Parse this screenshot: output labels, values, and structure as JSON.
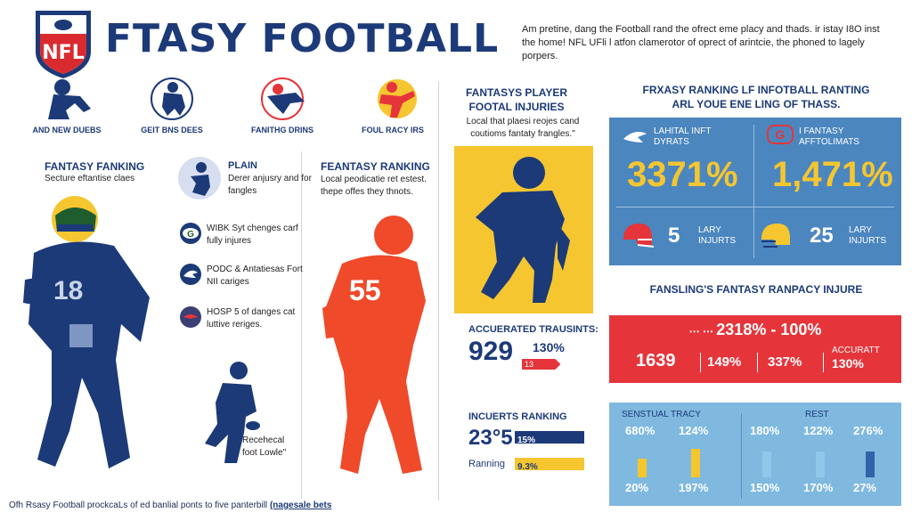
{
  "header": {
    "title": "FTASY FOOTBALL",
    "logo_text": "NFL",
    "intro": "Am pretine, dang the Football rand the ofrect eme placy and thads. ir istay I8O inst the home! NFL UFli l atfon clamerotor of oprect of arintcie, the phoned to lagely porpers."
  },
  "top_icons": [
    {
      "icon": "kneeling-player-icon",
      "label": "AND NEW DUEBS"
    },
    {
      "icon": "crouching-player-icon",
      "label": "GEIT BNS DEES"
    },
    {
      "icon": "diving-player-icon",
      "label": "FANITHG DRINS"
    },
    {
      "icon": "kicking-player-icon",
      "label": "FOUL RACY IRS"
    }
  ],
  "left_section": {
    "title": "FANTASY FANKING",
    "subtitle": "Secture eftantise claes",
    "jersey_number": "18",
    "list": [
      {
        "icon": "player-silhouette-icon",
        "title": "PLAIN",
        "text": "Derer anjusry and for fangles"
      },
      {
        "icon": "team-logo-g-icon",
        "text": "WIBK Syt chenges carf fully injures"
      },
      {
        "icon": "team-logo-eagle-icon",
        "text": "PODC & Antatiesas Fort NII cariges"
      },
      {
        "icon": "team-logo-bird-icon",
        "text": "HOSP 5 of danges cat luttive reriges."
      }
    ],
    "small_caption": "Recehecal foot Lowle\""
  },
  "middle_section": {
    "title": "FEANTASY RANKING",
    "text": "Local peodicatie ret estest. thepe offes they thnots.",
    "jersey_number": "55"
  },
  "player_panel": {
    "title": "FANTASYS PLAYER FOOTAL INJURIES",
    "text": "Local that plaesi reojes cand coutioms fantaty frangles.\""
  },
  "accuracy": {
    "title": "ACCUERATED TRAUSINTS:",
    "value": "929",
    "percent": "130%",
    "bar_label": "13",
    "bar_fraction": 0.62
  },
  "insights": {
    "title": "INCUERTS RANKING",
    "value": "23°5",
    "bars": [
      {
        "label": "",
        "value_text": "15%",
        "fraction": 1.0,
        "color": "#1c3a78"
      },
      {
        "label": "Ranning",
        "value_text": "9.3%",
        "fraction": 1.0,
        "color": "#f5c630"
      }
    ]
  },
  "right_header": {
    "line1": "FRXASY RANKING LF INFOTBALL RANTING",
    "line2": "ARL YOUE ENE LING OF THASS."
  },
  "stat_grid": [
    {
      "icon": "bird-logo-icon",
      "label": "LAHITAL INFT DYRATS",
      "value": "3371%"
    },
    {
      "icon": "g-logo-icon",
      "label": "I FANTASY AFFTOLIMATS",
      "value": "1,471%"
    },
    {
      "icon": "red-helmet-icon",
      "number": "5",
      "label": "LARY INJURTS"
    },
    {
      "icon": "yellow-helmet-icon",
      "number": "25",
      "label": "LARY INJURTS"
    }
  ],
  "red_panel": {
    "title": "FANSLING'S FANTASY RANPACY INJURE",
    "headline": "2318% - 100%",
    "stats": [
      "1639",
      "149%",
      "337%"
    ],
    "last_label": "ACCURATT",
    "last_value": "130%"
  },
  "bottom_chart": {
    "left_title": "SENSTUAL TRACY",
    "right_title": "REST",
    "columns": [
      {
        "top": "680%",
        "bottom": "20%",
        "fraction": 0.55,
        "color": "#f5c630"
      },
      {
        "top": "124%",
        "bottom": "197%",
        "fraction": 0.85,
        "color": "#f5c630"
      },
      {
        "top": "180%",
        "bottom": "150%",
        "fraction": 0.75,
        "color": "#8fc7ea"
      },
      {
        "top": "122%",
        "bottom": "170%",
        "fraction": 0.75,
        "color": "#8fc7ea"
      },
      {
        "top": "276%",
        "bottom": "27%",
        "fraction": 0.75,
        "color": "#2f64a8"
      }
    ]
  },
  "footer": {
    "text": "Ofh Rsasy Football prockcaLs of ed banlial ponts to five panterbill",
    "link": "(nagesale bets"
  },
  "colors": {
    "navy": "#1c3a78",
    "red": "#e5353b",
    "orange": "#ef4a2a",
    "yellow": "#f5c630",
    "blue": "#4b86bf",
    "light_blue": "#7fb9e0"
  }
}
